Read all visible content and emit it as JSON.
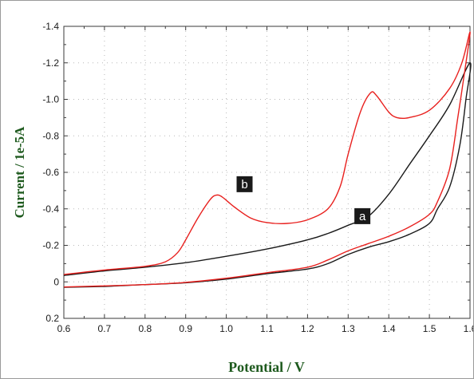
{
  "chart_data": {
    "type": "line",
    "title": "",
    "xlabel": "Potential / V",
    "ylabel": "Current / 1e-5A",
    "xlim": [
      0.6,
      1.6
    ],
    "ylim": [
      0.2,
      -1.4
    ],
    "y_axis_inverted": true,
    "grid": true,
    "grid_style": "dotted",
    "x_ticks": [
      0.6,
      0.7,
      0.8,
      0.9,
      1.0,
      1.1,
      1.2,
      1.3,
      1.4,
      1.5,
      1.6
    ],
    "x_tick_labels": [
      "0.6",
      "0.7",
      "0.8",
      "0.9",
      "1.0",
      "1.1",
      "1.2",
      "1.3",
      "1.4",
      "1.5",
      "1.6"
    ],
    "y_ticks": [
      -1.4,
      -1.2,
      -1.0,
      -0.8,
      -0.6,
      -0.4,
      -0.2,
      0,
      0.2
    ],
    "y_tick_labels": [
      "-1.4",
      "-1.2",
      "-1.0",
      "-0.8",
      "-0.6",
      "-0.4",
      "-0.2",
      "0",
      "0.2"
    ],
    "series": [
      {
        "label": "a",
        "color": "#1a1a1a",
        "points": [
          [
            0.6,
            -0.035
          ],
          [
            0.7,
            -0.06
          ],
          [
            0.8,
            -0.08
          ],
          [
            0.9,
            -0.105
          ],
          [
            1.0,
            -0.14
          ],
          [
            1.1,
            -0.18
          ],
          [
            1.2,
            -0.23
          ],
          [
            1.25,
            -0.265
          ],
          [
            1.3,
            -0.31
          ],
          [
            1.35,
            -0.36
          ],
          [
            1.4,
            -0.48
          ],
          [
            1.45,
            -0.64
          ],
          [
            1.5,
            -0.8
          ],
          [
            1.55,
            -0.97
          ],
          [
            1.6,
            -1.2
          ],
          [
            1.59,
            -1.0
          ],
          [
            1.575,
            -0.75
          ],
          [
            1.55,
            -0.52
          ],
          [
            1.52,
            -0.4
          ],
          [
            1.5,
            -0.32
          ],
          [
            1.45,
            -0.26
          ],
          [
            1.4,
            -0.22
          ],
          [
            1.35,
            -0.19
          ],
          [
            1.3,
            -0.15
          ],
          [
            1.25,
            -0.1
          ],
          [
            1.2,
            -0.07
          ],
          [
            1.1,
            -0.045
          ],
          [
            1.0,
            -0.015
          ],
          [
            0.9,
            0.005
          ],
          [
            0.8,
            0.015
          ],
          [
            0.7,
            0.025
          ],
          [
            0.6,
            0.03
          ]
        ]
      },
      {
        "label": "b",
        "color": "#e8201e",
        "points": [
          [
            0.6,
            -0.04
          ],
          [
            0.7,
            -0.065
          ],
          [
            0.8,
            -0.085
          ],
          [
            0.85,
            -0.11
          ],
          [
            0.88,
            -0.16
          ],
          [
            0.9,
            -0.23
          ],
          [
            0.93,
            -0.35
          ],
          [
            0.96,
            -0.45
          ],
          [
            0.975,
            -0.475
          ],
          [
            0.99,
            -0.465
          ],
          [
            1.02,
            -0.41
          ],
          [
            1.06,
            -0.35
          ],
          [
            1.1,
            -0.325
          ],
          [
            1.15,
            -0.32
          ],
          [
            1.2,
            -0.34
          ],
          [
            1.25,
            -0.4
          ],
          [
            1.28,
            -0.52
          ],
          [
            1.3,
            -0.7
          ],
          [
            1.33,
            -0.93
          ],
          [
            1.355,
            -1.035
          ],
          [
            1.37,
            -1.02
          ],
          [
            1.4,
            -0.93
          ],
          [
            1.42,
            -0.9
          ],
          [
            1.45,
            -0.9
          ],
          [
            1.5,
            -0.94
          ],
          [
            1.55,
            -1.06
          ],
          [
            1.58,
            -1.2
          ],
          [
            1.6,
            -1.37
          ],
          [
            1.59,
            -1.2
          ],
          [
            1.57,
            -0.9
          ],
          [
            1.55,
            -0.62
          ],
          [
            1.52,
            -0.44
          ],
          [
            1.5,
            -0.37
          ],
          [
            1.45,
            -0.3
          ],
          [
            1.4,
            -0.25
          ],
          [
            1.35,
            -0.21
          ],
          [
            1.3,
            -0.17
          ],
          [
            1.25,
            -0.12
          ],
          [
            1.2,
            -0.08
          ],
          [
            1.1,
            -0.05
          ],
          [
            1.0,
            -0.02
          ],
          [
            0.9,
            0.003
          ],
          [
            0.8,
            0.015
          ],
          [
            0.7,
            0.022
          ],
          [
            0.6,
            0.028
          ]
        ]
      }
    ],
    "annotations": [
      {
        "text": "b",
        "x": 1.045,
        "y": -0.535
      },
      {
        "text": "a",
        "x": 1.335,
        "y": -0.36
      }
    ]
  }
}
